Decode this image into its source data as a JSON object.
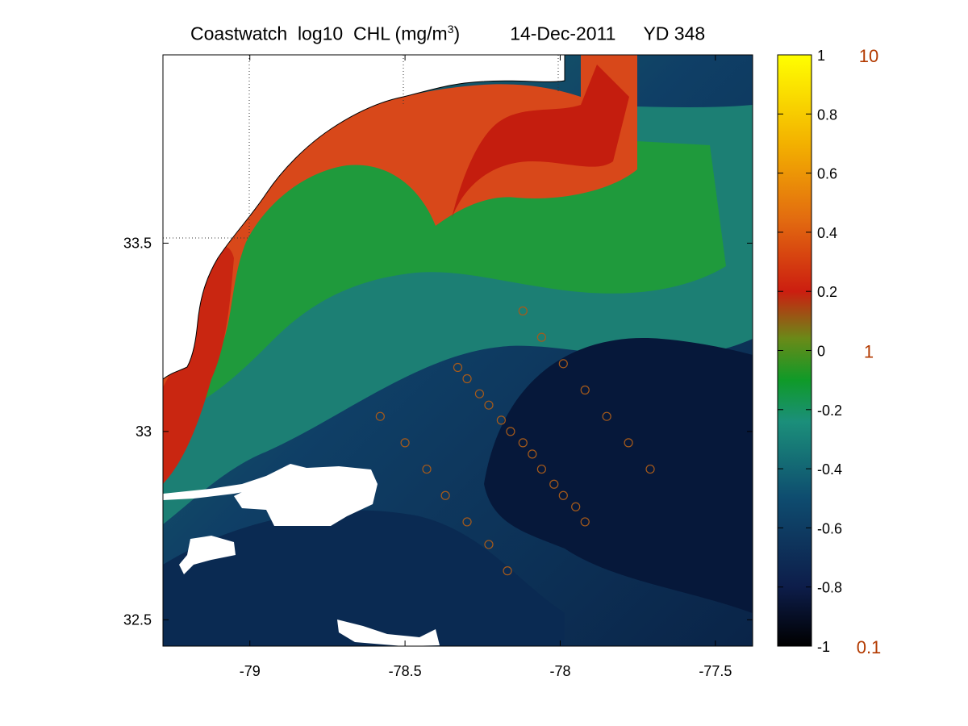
{
  "title": {
    "product": "Coastwatch  log10  CHL (mg/m",
    "superscript": "3",
    "close": ")",
    "date": "14-Dec-2011",
    "yearday": "YD 348"
  },
  "map": {
    "lon_ticks": [
      "-79",
      "-78.5",
      "-78",
      "-77.5"
    ],
    "lat_ticks": [
      "33.5",
      "33",
      "32.5"
    ],
    "lon_values": [
      -79,
      -78.5,
      -78,
      -77.5
    ],
    "lat_values": [
      33.5,
      33,
      32.5
    ],
    "lon_range": [
      -79.28,
      -77.38
    ],
    "lat_range": [
      32.43,
      34.0
    ],
    "station_markers": "orange circles along two transects",
    "land_color": "#ffffff",
    "coast_color": "#000000"
  },
  "colorbar": {
    "ticks": [
      "1",
      "0.8",
      "0.6",
      "0.4",
      "0.2",
      "0",
      "-0.2",
      "-0.4",
      "-0.6",
      "-0.8",
      "-1"
    ],
    "tick_values": [
      1,
      0.8,
      0.6,
      0.4,
      0.2,
      0,
      -0.2,
      -0.4,
      -0.6,
      -0.8,
      -1
    ],
    "range": [
      -1,
      1
    ],
    "concentration_labels": [
      "10",
      "1",
      "0.1"
    ],
    "stops": [
      "#000000",
      "#0d1d4a",
      "#0e4c6f",
      "#1b8f7a",
      "#0f9a28",
      "#cc1e10",
      "#e26a10",
      "#f3b100",
      "#ffff00"
    ]
  },
  "colors": {
    "marker": "#a65a1a",
    "side_label": "#b33a00"
  }
}
